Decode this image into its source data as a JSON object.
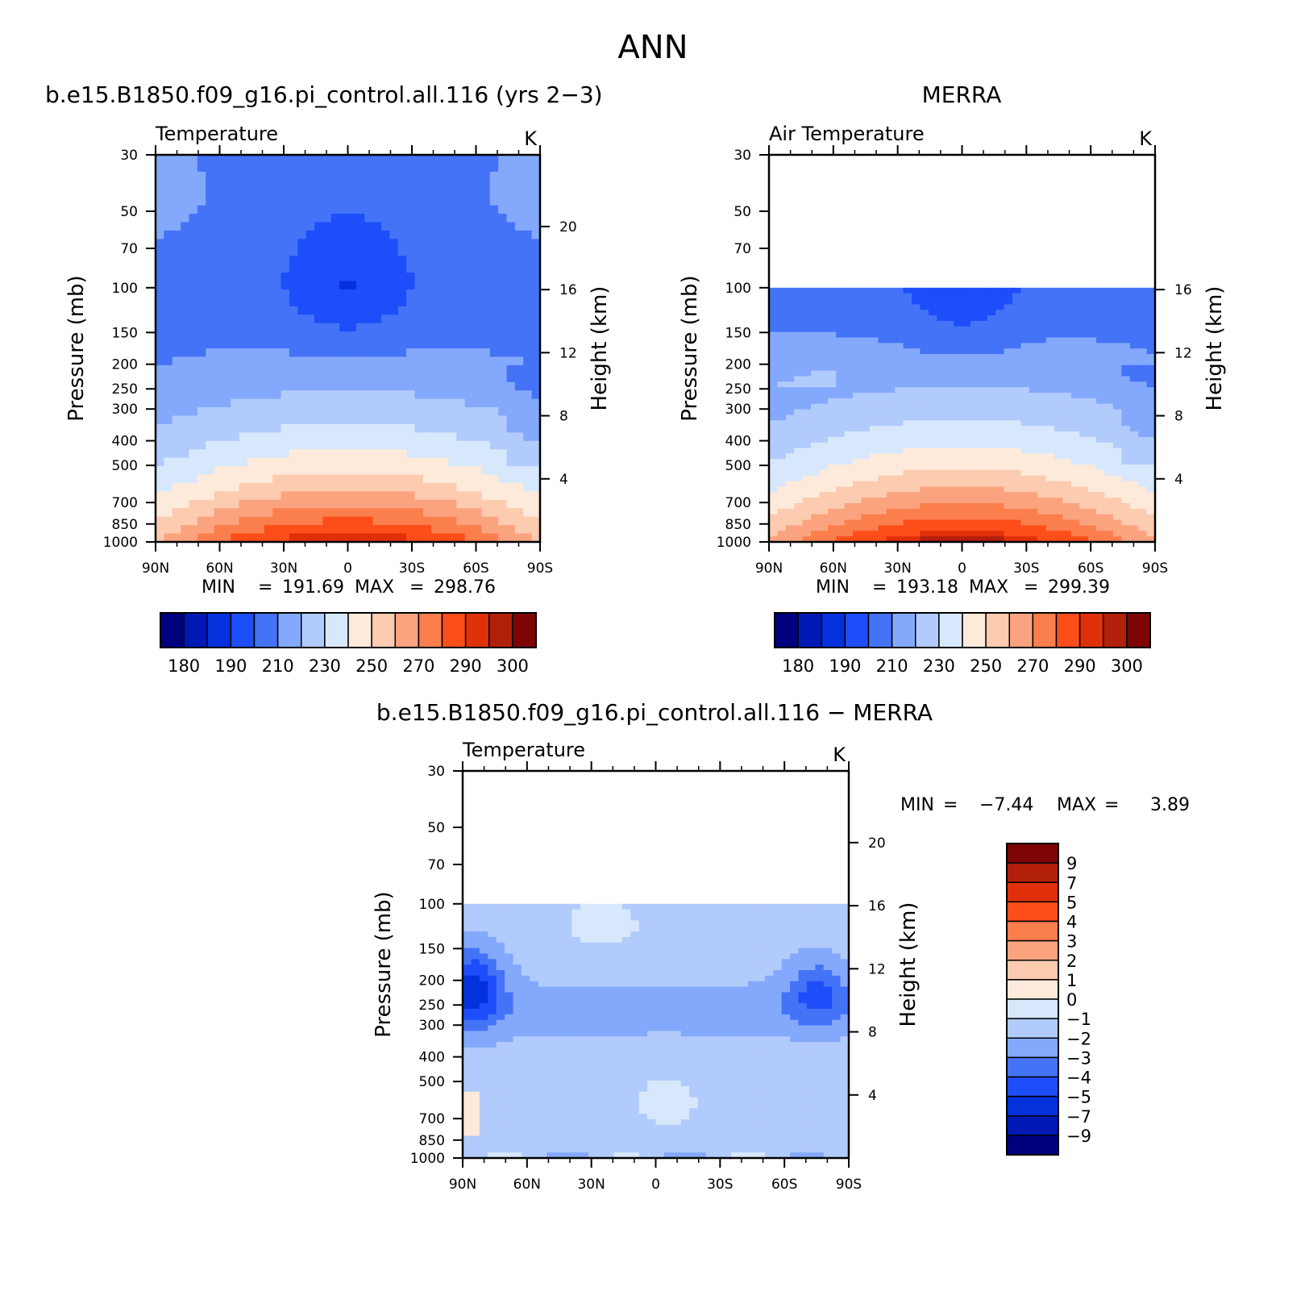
{
  "figure_title": "ANN",
  "colors": {
    "abs": [
      "#00007f",
      "#0018b4",
      "#0431db",
      "#1d4ef9",
      "#4473f7",
      "#84a8fb",
      "#b2cbfd",
      "#d8e8fc",
      "#fdeadb",
      "#fccbb0",
      "#fba37f",
      "#fb7e4d",
      "#fd4e1a",
      "#df3009",
      "#b21f0a",
      "#7d0505"
    ],
    "diff": [
      "#00007f",
      "#0018b4",
      "#0431db",
      "#1d4ef9",
      "#4473f7",
      "#84a8fb",
      "#b2cbfd",
      "#d8e8fc",
      "#fdeadb",
      "#fccbb0",
      "#fba37f",
      "#fb7e4d",
      "#fd4e1a",
      "#df3009",
      "#b21f0a",
      "#7d0505"
    ]
  },
  "chart_data": [
    {
      "type": "contour",
      "id": "model",
      "title": "b.e15.B1850.f09_g16.pi_control.all.116 (yrs 2−3)",
      "variable": "Temperature",
      "units": "K",
      "ylabel": "Pressure (mb)",
      "ylabel_right": "Height (km)",
      "x": [
        "90N",
        "60N",
        "30N",
        "0",
        "30S",
        "60S",
        "90S"
      ],
      "y_pressure": [
        "30",
        "50",
        "70",
        "100",
        "150",
        "200",
        "250",
        "300",
        "400",
        "500",
        "700",
        "850",
        "1000"
      ],
      "y_height": [
        "20",
        "16",
        "12",
        "8",
        "4"
      ],
      "ylim": [
        1000,
        30
      ],
      "stats": {
        "min_label": "MIN",
        "min": "191.69",
        "max_label": "MAX",
        "max": "298.76",
        "sep": "="
      },
      "colorbar": {
        "orientation": "horizontal",
        "labels": [
          "180",
          "190",
          "210",
          "230",
          "250",
          "270",
          "290",
          "300"
        ]
      }
    },
    {
      "type": "contour",
      "id": "obs",
      "title": "MERRA",
      "variable": "Air Temperature",
      "units": "K",
      "ylabel": "Pressure (mb)",
      "ylabel_right": "Height (km)",
      "x": [
        "90N",
        "60N",
        "30N",
        "0",
        "30S",
        "60S",
        "90S"
      ],
      "y_pressure": [
        "30",
        "50",
        "70",
        "100",
        "150",
        "200",
        "250",
        "300",
        "400",
        "500",
        "700",
        "850",
        "1000"
      ],
      "y_height": [
        "16",
        "12",
        "8",
        "4"
      ],
      "ylim": [
        1000,
        30
      ],
      "data_top": 100,
      "stats": {
        "min_label": "MIN",
        "min": "193.18",
        "max_label": "MAX",
        "max": "299.39",
        "sep": "="
      },
      "colorbar": {
        "orientation": "horizontal",
        "labels": [
          "180",
          "190",
          "210",
          "230",
          "250",
          "270",
          "290",
          "300"
        ]
      }
    },
    {
      "type": "contour",
      "id": "diff",
      "title": "b.e15.B1850.f09_g16.pi_control.all.116 − MERRA",
      "variable": "Temperature",
      "units": "K",
      "ylabel": "Pressure (mb)",
      "ylabel_right": "Height (km)",
      "x": [
        "90N",
        "60N",
        "30N",
        "0",
        "30S",
        "60S",
        "90S"
      ],
      "y_pressure": [
        "30",
        "50",
        "70",
        "100",
        "150",
        "200",
        "250",
        "300",
        "400",
        "500",
        "700",
        "850",
        "1000"
      ],
      "y_height": [
        "20",
        "16",
        "12",
        "8",
        "4"
      ],
      "ylim": [
        1000,
        30
      ],
      "data_top": 100,
      "stats": {
        "min_label": "MIN",
        "min": "−7.44",
        "max_label": "MAX",
        "max": "3.89",
        "sep": "="
      },
      "colorbar": {
        "orientation": "vertical",
        "labels": [
          "9",
          "7",
          "5",
          "4",
          "3",
          "2",
          "1",
          "0",
          "−1",
          "−2",
          "−3",
          "−4",
          "−5",
          "−7",
          "−9"
        ]
      }
    }
  ]
}
